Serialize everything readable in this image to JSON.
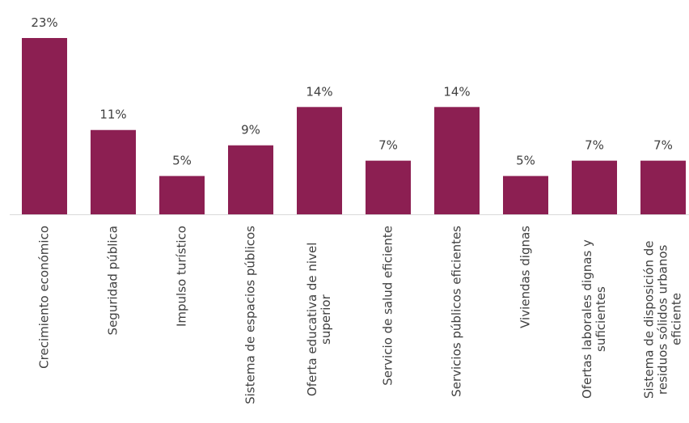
{
  "chart_data": {
    "type": "bar",
    "categories": [
      "Crecimiento económico",
      "Seguridad pública",
      "Impulso turístico",
      "Sistema de espacios públicos",
      "Oferta educativa de nivel superior",
      "Servicio de salud eficiente",
      "Servicios públicos eficientes",
      "Viviendas dignas",
      "Ofertas laborales dignas y suficientes",
      "Sistema de disposición de residuos sólidos urbanos eficiente"
    ],
    "values": [
      23,
      11,
      5,
      9,
      14,
      7,
      14,
      5,
      7,
      7
    ],
    "value_labels": [
      "23%",
      "11%",
      "5%",
      "9%",
      "14%",
      "7%",
      "14%",
      "5%",
      "7%",
      "7%"
    ],
    "color": "#8c1f52"
  }
}
